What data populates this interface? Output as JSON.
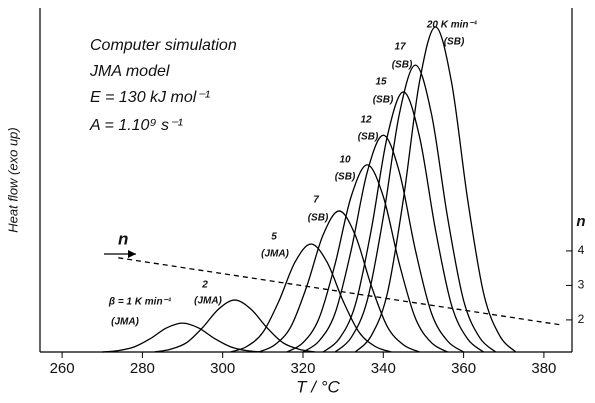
{
  "chart_data": {
    "type": "line",
    "xlabel": "T / °C",
    "ylabel": "Heat flow (exo up)",
    "y2label": "n",
    "annotations": [
      "Computer simulation",
      "JMA model",
      "E = 130 kJ mol⁻¹",
      "A = 1.10⁹ s⁻¹",
      "n"
    ],
    "xlim": [
      254.5,
      387
    ],
    "xticks": [
      260,
      280,
      300,
      320,
      340,
      360,
      380
    ],
    "ylim": [
      0,
      100
    ],
    "y2lim": [
      1.07,
      11.04
    ],
    "y2ticks": [
      2,
      3,
      4
    ],
    "series": [
      {
        "name": "β = 1 K min⁻¹",
        "model": "(JMA)",
        "color": "#000000",
        "x": [
          270,
          274,
          278,
          282,
          286,
          290,
          294,
          298,
          302,
          306,
          310
        ],
        "values": [
          0,
          0.4,
          1.5,
          3.9,
          7.0,
          8.4,
          7.0,
          3.9,
          1.5,
          0.4,
          0
        ]
      },
      {
        "name": "2",
        "model": "(JMA)",
        "color": "#000000",
        "x": [
          283,
          287,
          291,
          295,
          299,
          303,
          307,
          311,
          315,
          319,
          323
        ],
        "values": [
          0,
          0.8,
          2.7,
          7.1,
          12.5,
          15.1,
          12.5,
          7.1,
          2.7,
          0.8,
          0
        ]
      },
      {
        "name": "5",
        "model": "(JMA)",
        "color": "#000000",
        "x": [
          302,
          306,
          310,
          314,
          318,
          322,
          326,
          330,
          334,
          338,
          342
        ],
        "values": [
          0,
          1.6,
          5.7,
          14.8,
          26.1,
          31.4,
          26.1,
          14.8,
          5.7,
          1.6,
          0
        ]
      },
      {
        "name": "7",
        "model": "(SB)",
        "color": "#000000",
        "x": [
          309,
          313,
          317,
          321,
          325,
          329,
          333,
          337,
          341,
          345,
          349
        ],
        "values": [
          0,
          2.1,
          7.4,
          19.3,
          34.0,
          41,
          34.0,
          19.3,
          7.4,
          2.1,
          0
        ]
      },
      {
        "name": "10",
        "model": "(SB)",
        "color": "#000000",
        "x": [
          316,
          320,
          324,
          328,
          332,
          336,
          340,
          344,
          348,
          352,
          356
        ],
        "values": [
          0,
          2.7,
          9.8,
          25.6,
          45.2,
          54.4,
          45.2,
          25.6,
          9.8,
          2.7,
          0
        ]
      },
      {
        "name": "12",
        "model": "(SB)",
        "color": "#000000",
        "x": [
          320,
          324,
          328,
          332,
          336,
          340,
          344,
          348,
          352,
          356,
          360
        ],
        "values": [
          0,
          3.2,
          11.3,
          29.6,
          52.3,
          63,
          52.3,
          29.6,
          11.3,
          3.2,
          0
        ]
      },
      {
        "name": "15",
        "model": "(SB)",
        "color": "#000000",
        "x": [
          325,
          329,
          333,
          337,
          341,
          345,
          349,
          353,
          357,
          361,
          365
        ],
        "values": [
          0,
          3.8,
          13.6,
          35.5,
          62.7,
          75.6,
          62.7,
          35.5,
          13.6,
          3.8,
          0
        ]
      },
      {
        "name": "17",
        "model": "(SB)",
        "color": "#000000",
        "x": [
          328,
          332,
          336,
          340,
          344,
          348,
          352,
          356,
          360,
          364,
          368
        ],
        "values": [
          0,
          4.2,
          15.0,
          39.2,
          69.2,
          83.4,
          69.2,
          39.2,
          15.0,
          4.2,
          0
        ]
      },
      {
        "name": "20 K min⁻¹",
        "model": "(SB)",
        "color": "#000000",
        "x": [
          333,
          337,
          341,
          345,
          349,
          353,
          357,
          361,
          365,
          369,
          373
        ],
        "values": [
          0,
          4.7,
          17.0,
          44.4,
          78.4,
          94.5,
          78.4,
          44.4,
          17.0,
          4.7,
          0
        ]
      }
    ],
    "n_series": {
      "color": "#000000",
      "dashed": true,
      "axis": "y2",
      "x": [
        274,
        329,
        384
      ],
      "values": [
        3.8,
        2.83,
        1.86
      ]
    }
  }
}
